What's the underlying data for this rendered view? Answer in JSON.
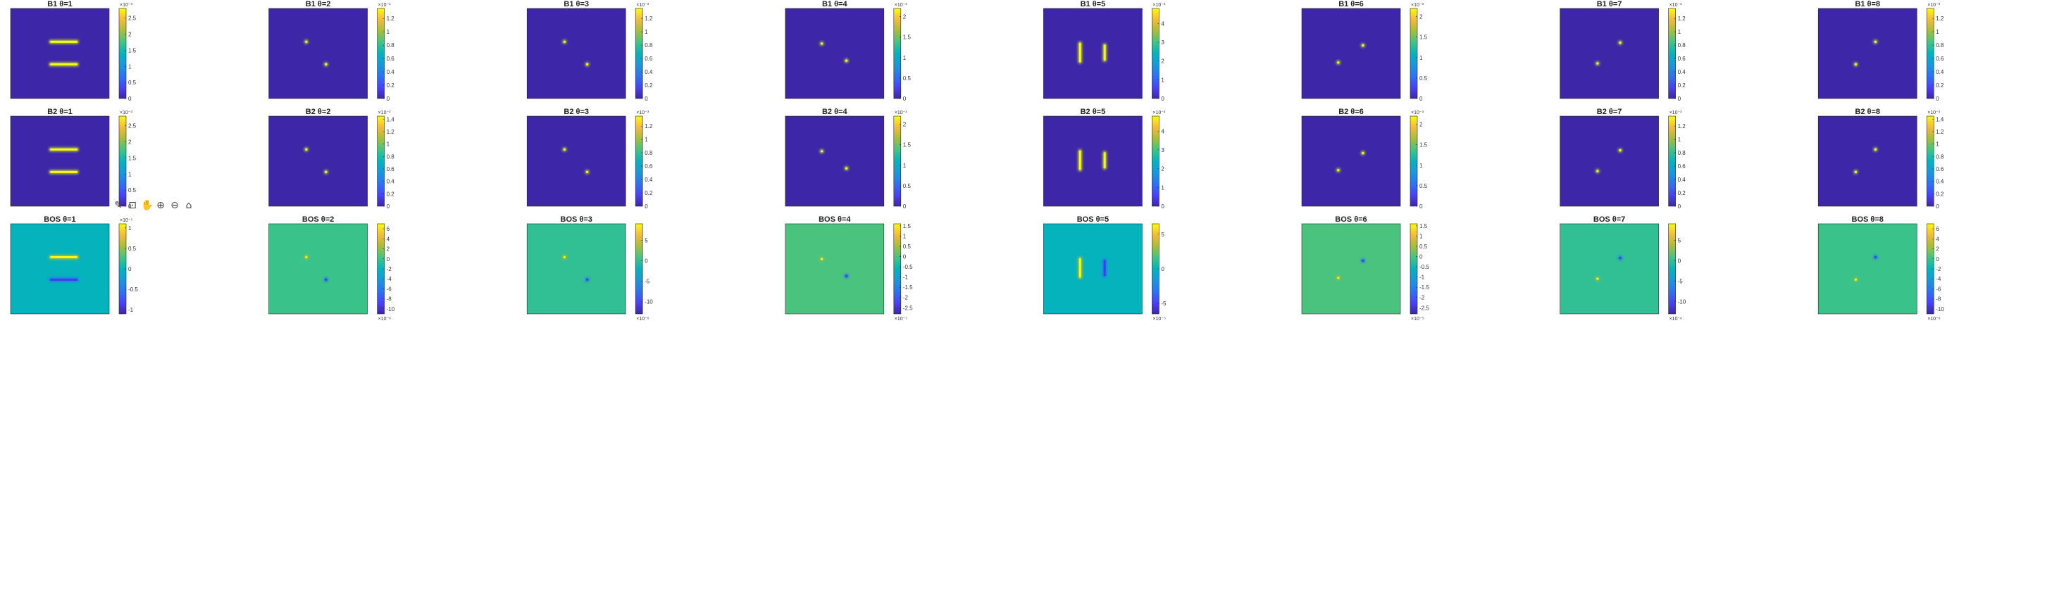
{
  "colors": {
    "parula_low": "#3e26a8",
    "parula_high": "#f9fb0e"
  },
  "toolbar": {
    "icons": [
      "pencil-icon",
      "datatip-icon",
      "pan-icon",
      "zoom-in-icon",
      "zoom-out-icon",
      "home-icon"
    ]
  },
  "chart_data": [
    {
      "type": "heatmap",
      "title": "B1 θ=1",
      "colorbar": {
        "ticks": [
          "0",
          "0.5",
          "1",
          "1.5",
          "2",
          "2.5"
        ],
        "range": [
          0,
          2.8
        ],
        "exponent": "×10⁻³",
        "exp_pos": "top"
      },
      "features": [
        {
          "shape": "hbar",
          "cx": 0.54,
          "cy": 0.37,
          "len": 0.28
        },
        {
          "shape": "hbar",
          "cx": 0.54,
          "cy": 0.62,
          "len": 0.28
        }
      ]
    },
    {
      "type": "heatmap",
      "title": "B1 θ=2",
      "colorbar": {
        "ticks": [
          "0",
          "0.2",
          "0.4",
          "0.6",
          "0.8",
          "1",
          "1.2"
        ],
        "range": [
          0,
          1.35
        ],
        "exponent": "×10⁻³",
        "exp_pos": "top"
      },
      "features": [
        {
          "shape": "dot",
          "cx": 0.38,
          "cy": 0.37
        },
        {
          "shape": "dot",
          "cx": 0.58,
          "cy": 0.62
        }
      ]
    },
    {
      "type": "heatmap",
      "title": "B1 θ=3",
      "colorbar": {
        "ticks": [
          "0",
          "0.2",
          "0.4",
          "0.6",
          "0.8",
          "1",
          "1.2"
        ],
        "range": [
          0,
          1.35
        ],
        "exponent": "×10⁻³",
        "exp_pos": "top"
      },
      "features": [
        {
          "shape": "dot",
          "cx": 0.38,
          "cy": 0.37
        },
        {
          "shape": "dot",
          "cx": 0.61,
          "cy": 0.62
        }
      ]
    },
    {
      "type": "heatmap",
      "title": "B1 θ=4",
      "colorbar": {
        "ticks": [
          "0",
          "0.5",
          "1",
          "1.5",
          "2"
        ],
        "range": [
          0,
          2.2
        ],
        "exponent": "×10⁻³",
        "exp_pos": "top"
      },
      "features": [
        {
          "shape": "dot",
          "cx": 0.37,
          "cy": 0.39
        },
        {
          "shape": "dot",
          "cx": 0.62,
          "cy": 0.58
        }
      ]
    },
    {
      "type": "heatmap",
      "title": "B1 θ=5",
      "colorbar": {
        "ticks": [
          "0",
          "1",
          "2",
          "3",
          "4"
        ],
        "range": [
          0,
          4.8
        ],
        "exponent": "×10⁻³",
        "exp_pos": "top"
      },
      "features": [
        {
          "shape": "vbar",
          "cx": 0.37,
          "cy": 0.49,
          "len": 0.22
        },
        {
          "shape": "vbar",
          "cx": 0.62,
          "cy": 0.49,
          "len": 0.18
        }
      ]
    },
    {
      "type": "heatmap",
      "title": "B1 θ=6",
      "colorbar": {
        "ticks": [
          "0",
          "0.5",
          "1",
          "1.5",
          "2"
        ],
        "range": [
          0,
          2.2
        ],
        "exponent": "×10⁻³",
        "exp_pos": "top"
      },
      "features": [
        {
          "shape": "dot",
          "cx": 0.62,
          "cy": 0.41
        },
        {
          "shape": "dot",
          "cx": 0.37,
          "cy": 0.6
        }
      ]
    },
    {
      "type": "heatmap",
      "title": "B1 θ=7",
      "colorbar": {
        "ticks": [
          "0",
          "0.2",
          "0.4",
          "0.6",
          "0.8",
          "1",
          "1.2"
        ],
        "range": [
          0,
          1.35
        ],
        "exponent": "×10⁻³",
        "exp_pos": "top"
      },
      "features": [
        {
          "shape": "dot",
          "cx": 0.61,
          "cy": 0.38
        },
        {
          "shape": "dot",
          "cx": 0.38,
          "cy": 0.61
        }
      ]
    },
    {
      "type": "heatmap",
      "title": "B1 θ=8",
      "colorbar": {
        "ticks": [
          "0",
          "0.2",
          "0.4",
          "0.6",
          "0.8",
          "1",
          "1.2"
        ],
        "range": [
          0,
          1.35
        ],
        "exponent": "×10⁻³",
        "exp_pos": "top"
      },
      "features": [
        {
          "shape": "dot",
          "cx": 0.58,
          "cy": 0.37
        },
        {
          "shape": "dot",
          "cx": 0.38,
          "cy": 0.62
        }
      ]
    },
    {
      "type": "heatmap",
      "title": "B2 θ=1",
      "colorbar": {
        "ticks": [
          "0",
          "0.5",
          "1",
          "1.5",
          "2",
          "2.5"
        ],
        "range": [
          0,
          2.8
        ],
        "exponent": "×10⁻³",
        "exp_pos": "top"
      },
      "features": [
        {
          "shape": "hbar",
          "cx": 0.54,
          "cy": 0.37,
          "len": 0.28
        },
        {
          "shape": "hbar",
          "cx": 0.54,
          "cy": 0.62,
          "len": 0.28
        }
      ]
    },
    {
      "type": "heatmap",
      "title": "B2 θ=2",
      "colorbar": {
        "ticks": [
          "0",
          "0.2",
          "0.4",
          "0.6",
          "0.8",
          "1",
          "1.2",
          "1.4"
        ],
        "range": [
          0,
          1.45
        ],
        "exponent": "×10⁻³",
        "exp_pos": "top"
      },
      "features": [
        {
          "shape": "dot",
          "cx": 0.38,
          "cy": 0.37
        },
        {
          "shape": "dot",
          "cx": 0.58,
          "cy": 0.62
        }
      ]
    },
    {
      "type": "heatmap",
      "title": "B2 θ=3",
      "colorbar": {
        "ticks": [
          "0",
          "0.2",
          "0.4",
          "0.6",
          "0.8",
          "1",
          "1.2"
        ],
        "range": [
          0,
          1.35
        ],
        "exponent": "×10⁻³",
        "exp_pos": "top"
      },
      "features": [
        {
          "shape": "dot",
          "cx": 0.38,
          "cy": 0.37
        },
        {
          "shape": "dot",
          "cx": 0.61,
          "cy": 0.62
        }
      ]
    },
    {
      "type": "heatmap",
      "title": "B2 θ=4",
      "colorbar": {
        "ticks": [
          "0",
          "0.5",
          "1",
          "1.5",
          "2"
        ],
        "range": [
          0,
          2.2
        ],
        "exponent": "×10⁻³",
        "exp_pos": "top"
      },
      "features": [
        {
          "shape": "dot",
          "cx": 0.37,
          "cy": 0.39
        },
        {
          "shape": "dot",
          "cx": 0.62,
          "cy": 0.58
        }
      ]
    },
    {
      "type": "heatmap",
      "title": "B2 θ=5",
      "colorbar": {
        "ticks": [
          "0",
          "1",
          "2",
          "3",
          "4"
        ],
        "range": [
          0,
          4.8
        ],
        "exponent": "×10⁻³",
        "exp_pos": "top"
      },
      "features": [
        {
          "shape": "vbar",
          "cx": 0.37,
          "cy": 0.49,
          "len": 0.22
        },
        {
          "shape": "vbar",
          "cx": 0.62,
          "cy": 0.49,
          "len": 0.18
        }
      ]
    },
    {
      "type": "heatmap",
      "title": "B2 θ=6",
      "colorbar": {
        "ticks": [
          "0",
          "0.5",
          "1",
          "1.5",
          "2"
        ],
        "range": [
          0,
          2.2
        ],
        "exponent": "×10⁻³",
        "exp_pos": "top"
      },
      "features": [
        {
          "shape": "dot",
          "cx": 0.62,
          "cy": 0.41
        },
        {
          "shape": "dot",
          "cx": 0.37,
          "cy": 0.6
        }
      ]
    },
    {
      "type": "heatmap",
      "title": "B2 θ=7",
      "colorbar": {
        "ticks": [
          "0",
          "0.2",
          "0.4",
          "0.6",
          "0.8",
          "1",
          "1.2"
        ],
        "range": [
          0,
          1.35
        ],
        "exponent": "×10⁻³",
        "exp_pos": "top"
      },
      "features": [
        {
          "shape": "dot",
          "cx": 0.61,
          "cy": 0.38
        },
        {
          "shape": "dot",
          "cx": 0.38,
          "cy": 0.61
        }
      ]
    },
    {
      "type": "heatmap",
      "title": "B2 θ=8",
      "colorbar": {
        "ticks": [
          "0",
          "0.2",
          "0.4",
          "0.6",
          "0.8",
          "1",
          "1.2",
          "1.4"
        ],
        "range": [
          0,
          1.45
        ],
        "exponent": "×10⁻³",
        "exp_pos": "top"
      },
      "features": [
        {
          "shape": "dot",
          "cx": 0.58,
          "cy": 0.37
        },
        {
          "shape": "dot",
          "cx": 0.38,
          "cy": 0.62
        }
      ]
    },
    {
      "type": "heatmap",
      "title": "BOS θ=1",
      "colorbar": {
        "ticks": [
          "-1",
          "-0.5",
          "0",
          "0.5",
          "1"
        ],
        "range": [
          -1.1,
          1.1
        ],
        "exponent": "×10⁻⁵",
        "exp_pos": "top"
      },
      "features": [
        {
          "shape": "hbar",
          "cx": 0.54,
          "cy": 0.37,
          "len": 0.28,
          "sign": 1
        },
        {
          "shape": "hbar",
          "cx": 0.54,
          "cy": 0.62,
          "len": 0.28,
          "sign": -1
        }
      ]
    },
    {
      "type": "heatmap",
      "title": "BOS θ=2",
      "colorbar": {
        "ticks": [
          "-10",
          "-8",
          "-6",
          "-4",
          "-2",
          "0",
          "2",
          "4",
          "6"
        ],
        "range": [
          -11,
          7
        ],
        "exponent": "×10⁻⁶",
        "exp_pos": "bottom"
      },
      "features": [
        {
          "shape": "dot",
          "cx": 0.38,
          "cy": 0.37,
          "sign": 1
        },
        {
          "shape": "dot",
          "cx": 0.58,
          "cy": 0.62,
          "sign": -1
        }
      ]
    },
    {
      "type": "heatmap",
      "title": "BOS θ=3",
      "colorbar": {
        "ticks": [
          "-10",
          "-5",
          "0",
          "5"
        ],
        "range": [
          -13,
          9
        ],
        "exponent": "×10⁻⁶",
        "exp_pos": "bottom"
      },
      "features": [
        {
          "shape": "dot",
          "cx": 0.38,
          "cy": 0.37,
          "sign": 1
        },
        {
          "shape": "dot",
          "cx": 0.61,
          "cy": 0.62,
          "sign": -1
        }
      ]
    },
    {
      "type": "heatmap",
      "title": "BOS θ=4",
      "colorbar": {
        "ticks": [
          "-2.5",
          "-2",
          "-1.5",
          "-1",
          "-0.5",
          "0",
          "0.5",
          "1",
          "1.5"
        ],
        "range": [
          -2.8,
          1.6
        ],
        "exponent": "×10⁻⁵",
        "exp_pos": "bottom"
      },
      "features": [
        {
          "shape": "dot",
          "cx": 0.37,
          "cy": 0.39,
          "sign": 1
        },
        {
          "shape": "dot",
          "cx": 0.62,
          "cy": 0.58,
          "sign": -1
        }
      ]
    },
    {
      "type": "heatmap",
      "title": "BOS θ=5",
      "colorbar": {
        "ticks": [
          "-5",
          "0",
          "5"
        ],
        "range": [
          -6.5,
          6.5
        ],
        "exponent": "×10⁻⁵",
        "exp_pos": "bottom"
      },
      "features": [
        {
          "shape": "vbar",
          "cx": 0.37,
          "cy": 0.49,
          "len": 0.22,
          "sign": 1
        },
        {
          "shape": "vbar",
          "cx": 0.62,
          "cy": 0.49,
          "len": 0.18,
          "sign": -1
        }
      ]
    },
    {
      "type": "heatmap",
      "title": "BOS θ=6",
      "colorbar": {
        "ticks": [
          "-2.5",
          "-2",
          "-1.5",
          "-1",
          "-0.5",
          "0",
          "0.5",
          "1",
          "1.5"
        ],
        "range": [
          -2.8,
          1.6
        ],
        "exponent": "×10⁻⁵",
        "exp_pos": "bottom"
      },
      "features": [
        {
          "shape": "dot",
          "cx": 0.62,
          "cy": 0.41,
          "sign": -1
        },
        {
          "shape": "dot",
          "cx": 0.37,
          "cy": 0.6,
          "sign": 1
        }
      ]
    },
    {
      "type": "heatmap",
      "title": "BOS θ=7",
      "colorbar": {
        "ticks": [
          "-10",
          "-5",
          "0",
          "5"
        ],
        "range": [
          -13,
          9
        ],
        "exponent": "×10⁻⁶",
        "exp_pos": "bottom"
      },
      "features": [
        {
          "shape": "dot",
          "cx": 0.61,
          "cy": 0.38,
          "sign": -1
        },
        {
          "shape": "dot",
          "cx": 0.38,
          "cy": 0.61,
          "sign": 1
        }
      ]
    },
    {
      "type": "heatmap",
      "title": "BOS θ=8",
      "colorbar": {
        "ticks": [
          "-10",
          "-8",
          "-6",
          "-4",
          "-2",
          "0",
          "2",
          "4",
          "6"
        ],
        "range": [
          -11,
          7
        ],
        "exponent": "×10⁻⁶",
        "exp_pos": "bottom"
      },
      "features": [
        {
          "shape": "dot",
          "cx": 0.58,
          "cy": 0.37,
          "sign": -1
        },
        {
          "shape": "dot",
          "cx": 0.38,
          "cy": 0.62,
          "sign": 1
        }
      ]
    }
  ]
}
